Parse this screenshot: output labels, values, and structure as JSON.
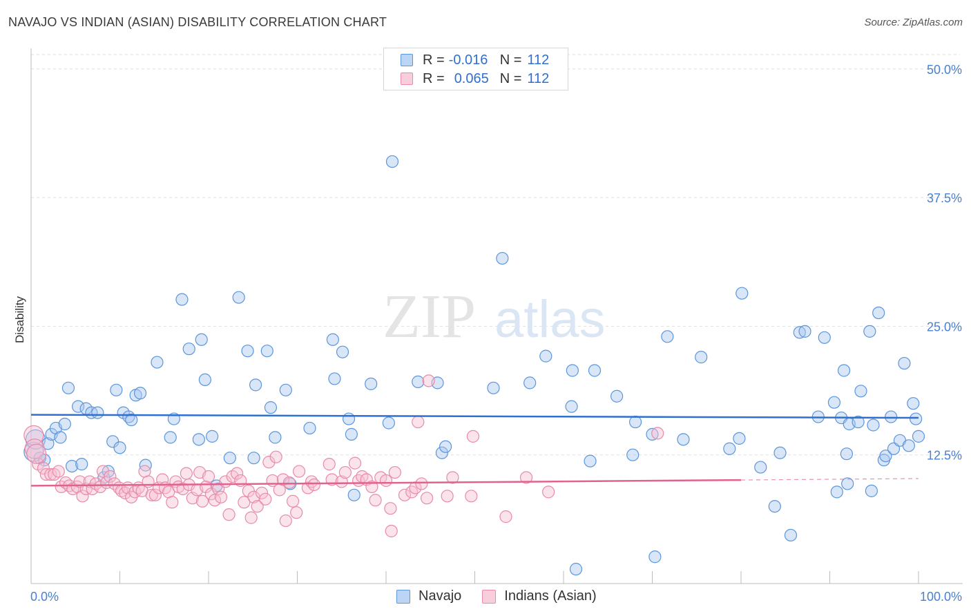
{
  "header": {
    "title": "NAVAJO VS INDIAN (ASIAN) DISABILITY CORRELATION CHART",
    "source": "Source: ZipAtlas.com"
  },
  "legend": {
    "series1": {
      "r_label": "R =",
      "r_value": "-0.016",
      "n_label": "N =",
      "n_value": "112"
    },
    "series2": {
      "r_label": "R =",
      "r_value": "0.065",
      "n_label": "N =",
      "n_value": "112"
    }
  },
  "watermark": {
    "part1": "ZIP",
    "part2": "atlas"
  },
  "colors": {
    "navajo_fill": "#a9c8f0",
    "navajo_stroke": "#5b95dc",
    "navajo_line": "#2f6fd0",
    "indian_fill": "#f7c2d3",
    "indian_stroke": "#e88aa8",
    "indian_line": "#e0628f",
    "grid": "#dddddd",
    "tick_text": "#4a7fcf"
  },
  "chart_data": {
    "type": "scatter",
    "title": "NAVAJO VS INDIAN (ASIAN) DISABILITY CORRELATION CHART",
    "xlabel": "",
    "ylabel": "Disability",
    "xlim": [
      0,
      100
    ],
    "ylim": [
      0,
      52
    ],
    "y_ticks": [
      {
        "value": 12.5,
        "label": "12.5%"
      },
      {
        "value": 25.0,
        "label": "25.0%"
      },
      {
        "value": 37.5,
        "label": "37.5%"
      },
      {
        "value": 50.0,
        "label": "50.0%"
      }
    ],
    "x_tick_labels": {
      "min": "0.0%",
      "max": "100.0%"
    },
    "x_minor_ticks": [
      10,
      20,
      30,
      40,
      50,
      60,
      70,
      80,
      90,
      100
    ],
    "grid": true,
    "legend_position": "top-center",
    "series": [
      {
        "name": "Navajo",
        "trend": {
          "x0": 0,
          "y0": 16.4,
          "x1": 100,
          "y1": 16.1,
          "dashed_from": null
        },
        "points": [
          [
            0.3,
            12.8
          ],
          [
            0.5,
            14.0
          ],
          [
            1.0,
            12.2
          ],
          [
            1.5,
            12.0
          ],
          [
            1.9,
            13.6
          ],
          [
            2.3,
            14.5
          ],
          [
            2.8,
            15.1
          ],
          [
            3.3,
            14.2
          ],
          [
            3.8,
            15.5
          ],
          [
            4.2,
            19.0
          ],
          [
            4.6,
            11.4
          ],
          [
            5.3,
            17.2
          ],
          [
            5.7,
            11.6
          ],
          [
            6.2,
            17.0
          ],
          [
            6.8,
            16.6
          ],
          [
            7.5,
            16.6
          ],
          [
            8.2,
            10.3
          ],
          [
            8.7,
            10.9
          ],
          [
            9.2,
            13.8
          ],
          [
            9.6,
            18.8
          ],
          [
            10.0,
            13.2
          ],
          [
            10.4,
            16.6
          ],
          [
            11.0,
            16.2
          ],
          [
            11.3,
            15.9
          ],
          [
            11.8,
            18.3
          ],
          [
            12.3,
            18.5
          ],
          [
            12.9,
            11.5
          ],
          [
            14.2,
            21.5
          ],
          [
            15.7,
            14.2
          ],
          [
            16.1,
            16.0
          ],
          [
            17.0,
            27.6
          ],
          [
            17.8,
            22.8
          ],
          [
            18.9,
            14.0
          ],
          [
            19.2,
            23.7
          ],
          [
            19.6,
            19.8
          ],
          [
            20.4,
            14.3
          ],
          [
            20.9,
            9.5
          ],
          [
            22.4,
            12.2
          ],
          [
            23.4,
            27.8
          ],
          [
            24.4,
            22.6
          ],
          [
            25.1,
            12.2
          ],
          [
            25.3,
            19.3
          ],
          [
            26.6,
            22.6
          ],
          [
            27.0,
            17.1
          ],
          [
            27.5,
            14.2
          ],
          [
            28.7,
            18.8
          ],
          [
            29.2,
            9.7
          ],
          [
            31.4,
            15.1
          ],
          [
            34.0,
            23.7
          ],
          [
            35.1,
            22.5
          ],
          [
            34.2,
            19.9
          ],
          [
            35.8,
            16.0
          ],
          [
            36.1,
            14.5
          ],
          [
            36.4,
            8.6
          ],
          [
            38.3,
            19.4
          ],
          [
            40.7,
            41.0
          ],
          [
            40.3,
            15.6
          ],
          [
            43.6,
            19.6
          ],
          [
            45.8,
            19.5
          ],
          [
            46.3,
            12.7
          ],
          [
            46.7,
            13.3
          ],
          [
            52.1,
            19.0
          ],
          [
            53.1,
            31.6
          ],
          [
            56.2,
            19.5
          ],
          [
            58.0,
            22.1
          ],
          [
            60.9,
            17.2
          ],
          [
            61.0,
            20.7
          ],
          [
            61.4,
            1.4
          ],
          [
            63.5,
            20.7
          ],
          [
            63.0,
            11.9
          ],
          [
            66.0,
            18.2
          ],
          [
            67.8,
            12.5
          ],
          [
            68.1,
            15.7
          ],
          [
            70.0,
            14.5
          ],
          [
            70.3,
            2.6
          ],
          [
            71.7,
            24.0
          ],
          [
            73.5,
            14.0
          ],
          [
            75.5,
            22.0
          ],
          [
            78.7,
            13.1
          ],
          [
            79.8,
            14.1
          ],
          [
            80.1,
            28.2
          ],
          [
            82.2,
            11.3
          ],
          [
            83.8,
            7.5
          ],
          [
            84.4,
            12.7
          ],
          [
            85.6,
            4.7
          ],
          [
            86.6,
            24.4
          ],
          [
            87.2,
            24.5
          ],
          [
            88.7,
            16.2
          ],
          [
            89.4,
            23.9
          ],
          [
            90.5,
            17.6
          ],
          [
            90.8,
            8.9
          ],
          [
            91.3,
            16.1
          ],
          [
            91.6,
            20.7
          ],
          [
            91.9,
            12.6
          ],
          [
            92.0,
            9.7
          ],
          [
            92.2,
            15.5
          ],
          [
            93.2,
            15.7
          ],
          [
            93.5,
            18.7
          ],
          [
            94.5,
            24.5
          ],
          [
            94.7,
            9.0
          ],
          [
            94.9,
            15.4
          ],
          [
            95.5,
            26.3
          ],
          [
            96.1,
            12.0
          ],
          [
            96.3,
            12.4
          ],
          [
            96.9,
            16.2
          ],
          [
            97.2,
            13.1
          ],
          [
            97.9,
            13.9
          ],
          [
            98.4,
            21.4
          ],
          [
            98.9,
            13.4
          ],
          [
            99.4,
            17.5
          ],
          [
            99.7,
            16.0
          ],
          [
            100.0,
            14.3
          ]
        ]
      },
      {
        "name": "Indians (Asian)",
        "trend": {
          "x0": 0,
          "y0": 9.5,
          "x1": 100,
          "y1": 10.2,
          "dashed_from": 80
        },
        "points": [
          [
            0.3,
            14.4
          ],
          [
            0.4,
            13.1
          ],
          [
            0.8,
            11.6
          ],
          [
            1.4,
            11.2
          ],
          [
            1.7,
            10.6
          ],
          [
            2.2,
            10.6
          ],
          [
            2.6,
            10.6
          ],
          [
            3.1,
            10.9
          ],
          [
            3.4,
            9.4
          ],
          [
            3.9,
            9.8
          ],
          [
            4.3,
            9.5
          ],
          [
            4.7,
            9.2
          ],
          [
            5.2,
            9.4
          ],
          [
            5.5,
            9.9
          ],
          [
            5.8,
            8.5
          ],
          [
            6.2,
            9.2
          ],
          [
            6.6,
            9.9
          ],
          [
            6.9,
            9.2
          ],
          [
            7.3,
            9.7
          ],
          [
            7.8,
            9.4
          ],
          [
            8.1,
            10.9
          ],
          [
            8.5,
            9.8
          ],
          [
            8.9,
            10.4
          ],
          [
            9.4,
            9.7
          ],
          [
            9.9,
            9.3
          ],
          [
            10.2,
            9.0
          ],
          [
            10.6,
            8.8
          ],
          [
            10.9,
            9.3
          ],
          [
            11.3,
            8.4
          ],
          [
            11.7,
            8.9
          ],
          [
            12.1,
            9.3
          ],
          [
            12.5,
            9.0
          ],
          [
            12.8,
            10.9
          ],
          [
            13.2,
            9.9
          ],
          [
            13.6,
            8.6
          ],
          [
            14.0,
            8.6
          ],
          [
            14.4,
            9.3
          ],
          [
            14.8,
            10.1
          ],
          [
            15.1,
            9.3
          ],
          [
            15.5,
            8.9
          ],
          [
            15.9,
            7.9
          ],
          [
            16.3,
            9.9
          ],
          [
            16.6,
            9.4
          ],
          [
            17.1,
            9.2
          ],
          [
            17.5,
            10.7
          ],
          [
            17.8,
            9.6
          ],
          [
            18.2,
            8.3
          ],
          [
            18.7,
            9.1
          ],
          [
            19.0,
            10.8
          ],
          [
            19.3,
            8.0
          ],
          [
            19.7,
            9.4
          ],
          [
            20.0,
            10.4
          ],
          [
            20.3,
            8.7
          ],
          [
            20.7,
            8.1
          ],
          [
            21.1,
            9.2
          ],
          [
            21.4,
            8.4
          ],
          [
            21.9,
            9.9
          ],
          [
            22.3,
            6.7
          ],
          [
            22.7,
            10.4
          ],
          [
            23.2,
            10.7
          ],
          [
            23.6,
            10.0
          ],
          [
            24.0,
            7.9
          ],
          [
            24.5,
            9.0
          ],
          [
            24.8,
            6.4
          ],
          [
            25.1,
            8.4
          ],
          [
            25.5,
            7.5
          ],
          [
            26.0,
            8.8
          ],
          [
            26.4,
            8.2
          ],
          [
            26.8,
            11.8
          ],
          [
            27.2,
            10.0
          ],
          [
            27.6,
            12.3
          ],
          [
            28.0,
            9.1
          ],
          [
            28.4,
            10.1
          ],
          [
            28.7,
            6.1
          ],
          [
            29.1,
            9.8
          ],
          [
            29.5,
            8.0
          ],
          [
            29.9,
            6.9
          ],
          [
            30.2,
            10.9
          ],
          [
            31.2,
            9.3
          ],
          [
            31.6,
            9.9
          ],
          [
            31.9,
            9.6
          ],
          [
            33.6,
            11.6
          ],
          [
            33.9,
            10.1
          ],
          [
            35.0,
            9.9
          ],
          [
            35.4,
            10.8
          ],
          [
            36.5,
            11.7
          ],
          [
            36.9,
            10.0
          ],
          [
            37.3,
            10.4
          ],
          [
            37.8,
            10.1
          ],
          [
            38.4,
            9.4
          ],
          [
            38.8,
            8.1
          ],
          [
            39.4,
            10.3
          ],
          [
            40.0,
            10.0
          ],
          [
            40.5,
            7.3
          ],
          [
            40.6,
            5.1
          ],
          [
            41.0,
            10.8
          ],
          [
            42.1,
            8.6
          ],
          [
            42.9,
            8.9
          ],
          [
            43.3,
            9.3
          ],
          [
            43.6,
            15.7
          ],
          [
            44.0,
            9.7
          ],
          [
            44.6,
            8.3
          ],
          [
            44.8,
            19.7
          ],
          [
            46.9,
            8.5
          ],
          [
            47.5,
            10.3
          ],
          [
            49.8,
            14.3
          ],
          [
            49.6,
            8.5
          ],
          [
            53.5,
            6.5
          ],
          [
            55.8,
            10.3
          ],
          [
            58.3,
            8.9
          ],
          [
            70.6,
            14.6
          ],
          [
            0.6,
            12.6
          ]
        ]
      }
    ]
  },
  "bottom_legend": {
    "navajo": "Navajo",
    "indian": "Indians (Asian)"
  }
}
